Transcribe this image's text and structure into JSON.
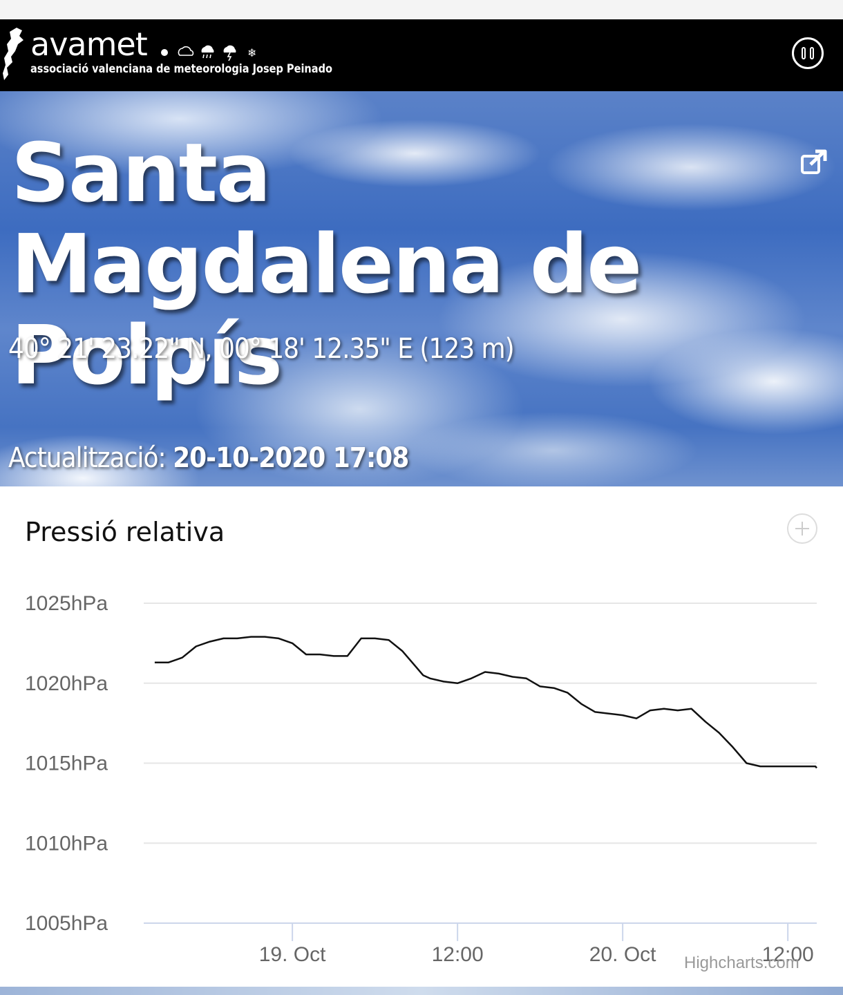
{
  "header": {
    "brand": "avamet",
    "tagline": "associació valenciana de meteorologia Josep Peinado",
    "menu_icon": "menu-circle-icon"
  },
  "hero": {
    "title": "Santa Magdalena de Polpís",
    "coordinates": "40° 21' 23.22\" N, 00° 18' 12.35\" E (123 m)",
    "updated_label": "Actualització:",
    "updated_value": "20-10-2020 17:08",
    "external_icon": "external-link-icon"
  },
  "chart_title": "Pressió relativa",
  "credits": "Highcharts.com",
  "colors": {
    "line": "#111111",
    "grid": "#e6e6e6",
    "axis": "#ccd6eb",
    "tick_label": "#666666"
  },
  "chart_data": {
    "type": "line",
    "title": "Pressió relativa",
    "xlabel": "",
    "ylabel": "",
    "grid": true,
    "ylim": [
      1005,
      1025
    ],
    "yticks": [
      {
        "value": 1025,
        "label": "1025hPa"
      },
      {
        "value": 1020,
        "label": "1020hPa"
      },
      {
        "value": 1015,
        "label": "1015hPa"
      },
      {
        "value": 1010,
        "label": "1010hPa"
      },
      {
        "value": 1005,
        "label": "1005hPa"
      }
    ],
    "x_unit": "hours",
    "xlim": [
      -10.8,
      38.1
    ],
    "xticks": [
      {
        "value": 0,
        "label": "19. Oct"
      },
      {
        "value": 12,
        "label": "12:00"
      },
      {
        "value": 24,
        "label": "20. Oct"
      },
      {
        "value": 36,
        "label": "12:00"
      }
    ],
    "series": [
      {
        "x": [
          -10.0,
          -9.0,
          -8.0,
          -7.0,
          -6.0,
          -5.0,
          -4.0,
          -3.0,
          -2.0,
          -1.0,
          0.0,
          1.0,
          2.0,
          3.0,
          4.0,
          5.0,
          6.0,
          7.0,
          8.0,
          9.0,
          9.5,
          10.0,
          11.0,
          12.0,
          13.0,
          14.0,
          15.0,
          16.0,
          17.0,
          18.0,
          19.0,
          20.0,
          21.0,
          22.0,
          23.0,
          24.0,
          25.0,
          26.0,
          27.0,
          28.0,
          29.0,
          30.0,
          31.0,
          32.0,
          33.0,
          34.0,
          35.0,
          36.0,
          36.5,
          37.0,
          37.5,
          38.0,
          38.1
        ],
        "values": [
          1021.3,
          1021.3,
          1021.6,
          1022.3,
          1022.6,
          1022.8,
          1022.8,
          1022.9,
          1022.9,
          1022.8,
          1022.5,
          1021.8,
          1021.8,
          1021.7,
          1021.7,
          1022.8,
          1022.8,
          1022.7,
          1022.0,
          1021.0,
          1020.5,
          1020.3,
          1020.1,
          1020.0,
          1020.3,
          1020.7,
          1020.6,
          1020.4,
          1020.3,
          1019.8,
          1019.7,
          1019.4,
          1018.7,
          1018.2,
          1018.1,
          1018.0,
          1017.8,
          1018.3,
          1018.4,
          1018.3,
          1018.4,
          1017.6,
          1016.9,
          1016.0,
          1015.0,
          1014.8,
          1014.8,
          1014.8,
          1014.8,
          1014.8,
          1014.8,
          1014.8,
          1014.7
        ]
      }
    ]
  }
}
